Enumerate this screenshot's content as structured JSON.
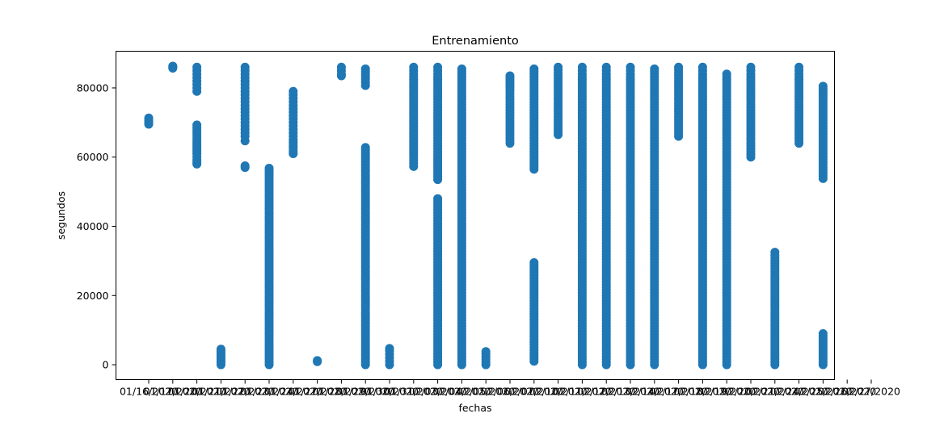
{
  "chart_data": {
    "type": "scatter",
    "title": "Entrenamiento",
    "xlabel": "fechas",
    "ylabel": "segundos",
    "ylim": [
      -4300,
      90600
    ],
    "yticks": [
      0,
      20000,
      40000,
      60000,
      80000
    ],
    "ytick_labels": [
      "0",
      "20000",
      "40000",
      "60000",
      "80000"
    ],
    "categories": [
      "01/16/2020",
      "01/17/2020",
      "01/20/2020",
      "01/21/2020",
      "01/22/2020",
      "01/23/2020",
      "01/24/2020",
      "01/27/2020",
      "01/28/2020",
      "01/29/2020",
      "01/30/2020",
      "01/31/2020",
      "02/03/2020",
      "02/04/2020",
      "02/05/2020",
      "02/06/2020",
      "02/07/2020",
      "02/10/2020",
      "02/11/2020",
      "02/12/2020",
      "02/13/2020",
      "02/14/2020",
      "02/17/2020",
      "02/18/2020",
      "02/19/2020",
      "02/20/2020",
      "02/21/2020",
      "02/24/2020",
      "02/25/2020",
      "02/26/2020",
      "02/27/2020"
    ],
    "series": [
      {
        "color": "#1f77b4",
        "marker": "circle",
        "points": [
          {
            "category": "01/16/2020",
            "values": [
              69500,
              70000,
              70600,
              71300
            ]
          },
          {
            "category": "01/17/2020",
            "values": [
              85700,
              86000,
              86300
            ]
          },
          {
            "category": "01/20/2020",
            "values": [
              58000,
              58500,
              59200,
              61000,
              64500,
              65300,
              69300,
              79000,
              80000,
              81000,
              82000,
              83000,
              84000,
              85000,
              86000
            ]
          },
          {
            "category": "01/21/2020",
            "values": [
              0,
              500,
              1000,
              1500,
              2000,
              2500,
              3000,
              3500,
              4000,
              4500
            ]
          },
          {
            "category": "01/22/2020",
            "values": [
              57000,
              57500,
              64700,
              66000,
              68000,
              70000,
              72000,
              74000,
              76000,
              78000,
              80000,
              82000,
              84000,
              86000
            ]
          },
          {
            "category": "01/23/2020",
            "values": [
              0,
              3000,
              6000,
              9000,
              12000,
              15000,
              18000,
              21000,
              24000,
              27000,
              30000,
              33000,
              36000,
              39000,
              42000,
              45000,
              48000,
              51000,
              54000,
              56800
            ]
          },
          {
            "category": "01/24/2020",
            "values": [
              61000,
              63300,
              65000,
              67000,
              69000,
              71000,
              73000,
              75000,
              77000,
              79000
            ]
          },
          {
            "category": "01/27/2020",
            "values": [
              900,
              1200
            ]
          },
          {
            "category": "01/28/2020",
            "values": [
              83500,
              84000,
              85000,
              86000
            ]
          },
          {
            "category": "01/29/2020",
            "values": [
              0,
              3000,
              6000,
              9000,
              12000,
              15000,
              18000,
              21000,
              24000,
              27000,
              30000,
              33000,
              36000,
              39000,
              42000,
              45000,
              48000,
              51000,
              54000,
              57000,
              60000,
              62800,
              80700,
              82500,
              84000,
              85500
            ]
          },
          {
            "category": "01/30/2020",
            "values": [
              0,
              1000,
              2000,
              3000,
              4000,
              4700
            ]
          },
          {
            "category": "01/31/2020",
            "values": [
              57300,
              60000,
              63000,
              66000,
              69000,
              72000,
              75000,
              78000,
              81000,
              84000,
              86000
            ]
          },
          {
            "category": "02/03/2020",
            "values": [
              0,
              4000,
              8000,
              12000,
              16000,
              20000,
              24000,
              28000,
              32000,
              36000,
              40000,
              44000,
              48000,
              53500,
              56500,
              60000,
              64000,
              68000,
              72000,
              76000,
              80000,
              84000,
              86000
            ]
          },
          {
            "category": "02/04/2020",
            "values": [
              0,
              4000,
              8000,
              12000,
              16000,
              20000,
              24000,
              28000,
              32000,
              36000,
              40000,
              44000,
              48000,
              52000,
              56000,
              60000,
              64000,
              68000,
              72000,
              76000,
              80000,
              84000,
              85500
            ]
          },
          {
            "category": "02/05/2020",
            "values": [
              0,
              1500,
              3800
            ]
          },
          {
            "category": "02/06/2020",
            "values": [
              64000,
              68000,
              72000,
              76000,
              80000,
              83500
            ]
          },
          {
            "category": "02/07/2020",
            "values": [
              1000,
              5000,
              9000,
              13000,
              17000,
              21000,
              25000,
              29500,
              56500,
              60000,
              64000,
              68000,
              72000,
              76000,
              80000,
              84000,
              85500
            ]
          },
          {
            "category": "02/10/2020",
            "values": [
              66500,
              70000,
              74000,
              78000,
              82000,
              86000
            ]
          },
          {
            "category": "02/11/2020",
            "values": [
              0,
              4000,
              8000,
              12000,
              16000,
              20000,
              24000,
              28000,
              32000,
              36000,
              40000,
              44000,
              48000,
              52000,
              56000,
              60000,
              64000,
              68000,
              72000,
              76000,
              80000,
              84000,
              86000
            ]
          },
          {
            "category": "02/12/2020",
            "values": [
              0,
              4000,
              8000,
              12000,
              16000,
              20000,
              24000,
              28000,
              32000,
              36000,
              40000,
              44000,
              48000,
              52000,
              56000,
              60000,
              64000,
              68000,
              72000,
              76000,
              80000,
              84000,
              86000
            ]
          },
          {
            "category": "02/13/2020",
            "values": [
              0,
              4000,
              8000,
              12000,
              16000,
              20000,
              24000,
              28000,
              32000,
              36000,
              40000,
              44000,
              48000,
              52000,
              56000,
              60000,
              64000,
              68000,
              72000,
              76000,
              80000,
              84000,
              86000
            ]
          },
          {
            "category": "02/14/2020",
            "values": [
              0,
              4000,
              8000,
              12000,
              16000,
              20000,
              24000,
              28000,
              32000,
              36000,
              40000,
              44000,
              48000,
              52000,
              56000,
              60000,
              64000,
              68000,
              72000,
              76000,
              80000,
              84000,
              85500
            ]
          },
          {
            "category": "02/17/2020",
            "values": [
              66000,
              70000,
              74000,
              78000,
              82000,
              86000
            ]
          },
          {
            "category": "02/18/2020",
            "values": [
              0,
              4000,
              8000,
              12000,
              16000,
              20000,
              24000,
              28000,
              32000,
              36000,
              40000,
              44000,
              48000,
              52000,
              56000,
              60000,
              64000,
              68000,
              72000,
              76000,
              80000,
              84000,
              86000
            ]
          },
          {
            "category": "02/19/2020",
            "values": [
              0,
              4000,
              8000,
              12000,
              16000,
              20000,
              24000,
              28000,
              32000,
              36000,
              40000,
              44000,
              48000,
              52000,
              56000,
              60000,
              64000,
              68000,
              72000,
              76000,
              80000,
              84000
            ]
          },
          {
            "category": "02/20/2020",
            "values": [
              60000,
              64000,
              68000,
              72000,
              76000,
              80000,
              84000,
              86000
            ]
          },
          {
            "category": "02/21/2020",
            "values": [
              0,
              3000,
              6000,
              9000,
              12000,
              15000,
              18000,
              21000,
              24000,
              27000,
              30000,
              32500
            ]
          },
          {
            "category": "02/24/2020",
            "values": [
              64000,
              68000,
              72000,
              76000,
              80000,
              84000,
              86000
            ]
          },
          {
            "category": "02/25/2020",
            "values": [
              0,
              3000,
              6000,
              9000,
              53800,
              57000,
              61000,
              65000,
              69000,
              73000,
              77000,
              80500
            ]
          }
        ]
      }
    ]
  }
}
